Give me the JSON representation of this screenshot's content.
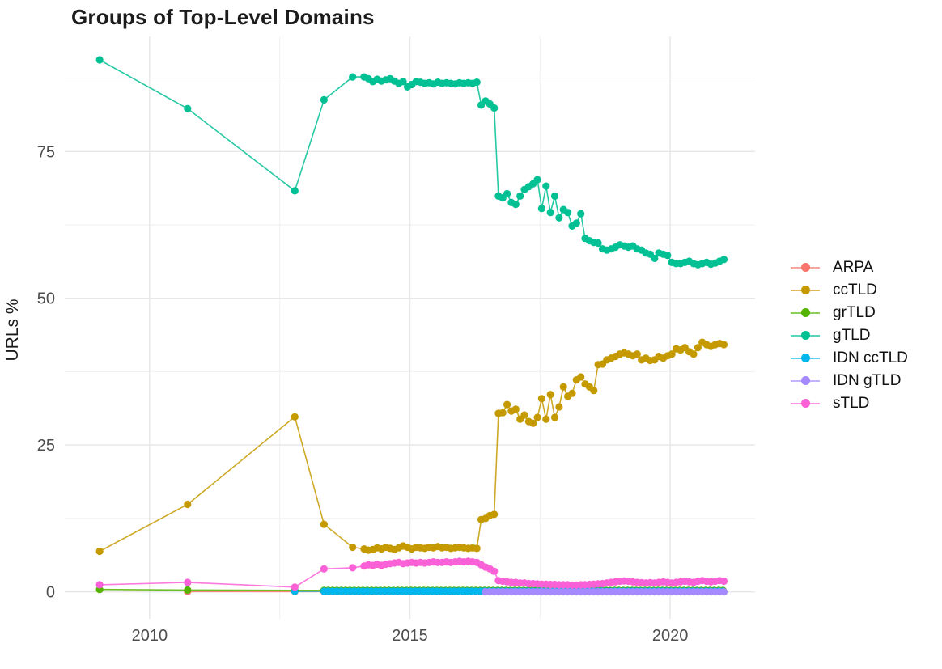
{
  "title": "Groups of Top-Level Domains",
  "chart_data": {
    "type": "line",
    "title": "Groups of Top-Level Domains",
    "xlabel": "",
    "ylabel": "URLs %",
    "legend_position": "right",
    "grid": true,
    "background": "#ffffff",
    "grid_major_color": "#e8e8e8",
    "grid_minor_color": "#f2f2f2",
    "tick_label_color": "#4d4d4d",
    "x_domain": [
      2008.37,
      2021.63
    ],
    "y_domain": [
      -4.6,
      94.6
    ],
    "x_ticks_major": [
      2010,
      2015,
      2020
    ],
    "x_tick_labels": [
      "2010",
      "2015",
      "2020"
    ],
    "x_ticks_minor": [
      2012.5,
      2017.5
    ],
    "y_ticks_major": [
      0,
      25,
      50,
      75
    ],
    "y_tick_labels": [
      "0",
      "25",
      "50",
      "75"
    ],
    "y_ticks_minor": [
      12.5,
      37.5,
      62.5,
      87.5
    ],
    "series": [
      {
        "name": "ARPA",
        "color": "#F8766D",
        "points": [
          [
            2010.73,
            0.05
          ],
          [
            2012.79,
            0.05
          ]
        ],
        "flat": {
          "from": 2013.35,
          "to": 2021.04,
          "step": 0.0833,
          "value": 0.05
        }
      },
      {
        "name": "ccTLD",
        "color": "#C49A00",
        "points": [
          [
            2009.04,
            6.9
          ],
          [
            2010.73,
            14.9
          ],
          [
            2012.79,
            29.8
          ],
          [
            2013.35,
            11.5
          ],
          [
            2013.9,
            7.6
          ]
        ],
        "segments": [
          {
            "from": 2014.12,
            "step": 0.0833,
            "values": [
              7.3,
              7.1,
              7.2,
              7.5,
              7.3,
              7.6,
              7.4,
              7.2,
              7.5,
              7.8,
              7.6,
              7.3,
              7.6,
              7.5,
              7.4,
              7.6,
              7.5,
              7.7,
              7.5,
              7.6,
              7.4,
              7.5,
              7.6,
              7.5,
              7.4,
              7.5,
              7.4
            ]
          },
          {
            "from": 2016.37,
            "step": 0.0833,
            "values": [
              12.3,
              12.5,
              13.0,
              13.2
            ]
          },
          {
            "from": 2016.7,
            "step": 0.0833,
            "values": [
              30.4,
              30.5,
              31.9,
              30.8,
              31.1,
              29.4,
              30.1,
              29.0,
              28.7,
              29.7,
              32.9,
              29.4,
              33.6,
              29.7,
              31.5,
              34.9,
              33.3,
              33.8,
              36.1,
              36.6,
              35.4,
              34.9,
              34.3,
              38.7,
              38.8,
              39.5,
              39.8,
              40.1,
              40.5,
              40.7,
              40.5,
              40.2,
              40.5,
              39.5,
              39.8,
              39.4,
              39.5,
              40.1,
              39.8,
              40.2,
              40.5,
              41.4,
              41.2,
              41.6,
              40.9,
              40.5,
              41.6,
              42.5,
              42.1,
              41.8,
              42.1,
              42.3,
              42.1
            ]
          }
        ]
      },
      {
        "name": "grTLD",
        "color": "#53B400",
        "points": [
          [
            2009.04,
            0.4
          ],
          [
            2010.73,
            0.3
          ],
          [
            2012.79,
            0.25
          ]
        ],
        "flat": {
          "from": 2013.35,
          "to": 2021.04,
          "step": 0.0833,
          "value": 0.25
        }
      },
      {
        "name": "gTLD",
        "color": "#00C094",
        "points": [
          [
            2009.04,
            90.6
          ],
          [
            2010.73,
            82.3
          ],
          [
            2012.79,
            68.3
          ],
          [
            2013.35,
            83.8
          ],
          [
            2013.9,
            87.7
          ]
        ],
        "segments": [
          {
            "from": 2014.12,
            "step": 0.0833,
            "values": [
              87.7,
              87.4,
              86.9,
              87.3,
              87.0,
              87.2,
              87.4,
              87.0,
              86.6,
              86.9,
              86.0,
              86.4,
              86.9,
              86.8,
              86.6,
              86.7,
              86.5,
              86.8,
              86.6,
              86.7,
              86.6,
              86.5,
              86.7,
              86.6,
              86.7,
              86.6,
              86.8
            ]
          },
          {
            "from": 2016.37,
            "step": 0.0833,
            "values": [
              82.9,
              83.6,
              83.1,
              82.4
            ]
          },
          {
            "from": 2016.7,
            "step": 0.0833,
            "values": [
              67.4,
              67.1,
              67.8,
              66.3,
              66.0,
              67.4,
              68.5,
              69.0,
              69.5,
              70.2,
              65.3,
              69.1,
              64.6,
              67.4,
              63.7,
              65.1,
              64.6,
              62.3,
              62.8,
              64.4,
              60.2,
              59.8,
              59.5,
              59.4,
              58.4,
              58.2,
              58.4,
              58.7,
              59.1,
              58.9,
              58.7,
              58.9,
              58.4,
              58.2,
              57.7,
              57.5,
              56.8,
              57.7,
              57.5,
              57.3,
              56.1,
              55.9,
              55.9,
              56.1,
              56.3,
              55.9,
              55.7,
              55.9,
              56.1,
              55.8,
              56.0,
              56.3,
              56.6
            ]
          }
        ]
      },
      {
        "name": "IDN ccTLD",
        "color": "#00B6EB",
        "points": [
          [
            2012.79,
            0.1
          ]
        ],
        "flat": {
          "from": 2013.35,
          "to": 2021.04,
          "step": 0.0833,
          "value": 0.1
        }
      },
      {
        "name": "IDN gTLD",
        "color": "#A58AFF",
        "points": [],
        "flat": {
          "from": 2016.45,
          "to": 2021.04,
          "step": 0.0833,
          "value": 0.0
        }
      },
      {
        "name": "sTLD",
        "color": "#FB61D7",
        "points": [
          [
            2009.04,
            1.2
          ],
          [
            2010.73,
            1.6
          ],
          [
            2012.79,
            0.8
          ],
          [
            2013.35,
            3.9
          ],
          [
            2013.9,
            4.1
          ]
        ],
        "segments": [
          {
            "from": 2014.12,
            "step": 0.0833,
            "values": [
              4.4,
              4.6,
              4.5,
              4.7,
              4.5,
              4.7,
              4.8,
              4.9,
              5.0,
              4.8,
              4.9,
              5.0,
              4.9,
              5.0,
              4.9,
              5.0,
              5.1,
              5.0,
              5.0,
              5.1,
              5.0,
              5.1,
              5.2,
              5.1,
              5.2,
              5.1,
              5.0
            ]
          },
          {
            "from": 2016.37,
            "step": 0.0833,
            "values": [
              4.6,
              4.2,
              3.9,
              3.5
            ]
          },
          {
            "from": 2016.7,
            "step": 0.0833,
            "values": [
              1.9,
              1.8,
              1.7,
              1.6,
              1.6,
              1.5,
              1.5,
              1.4,
              1.4,
              1.35,
              1.3,
              1.3,
              1.25,
              1.25,
              1.2,
              1.2,
              1.2,
              1.15,
              1.15,
              1.2,
              1.2,
              1.25,
              1.3,
              1.35,
              1.4,
              1.5,
              1.6,
              1.7,
              1.8,
              1.85,
              1.8,
              1.7,
              1.6,
              1.55,
              1.5,
              1.55,
              1.5,
              1.6,
              1.7,
              1.6,
              1.5,
              1.6,
              1.7,
              1.8,
              1.7,
              1.6,
              1.8,
              1.9,
              1.8,
              1.7,
              1.8,
              1.9,
              1.8
            ]
          }
        ]
      }
    ]
  }
}
